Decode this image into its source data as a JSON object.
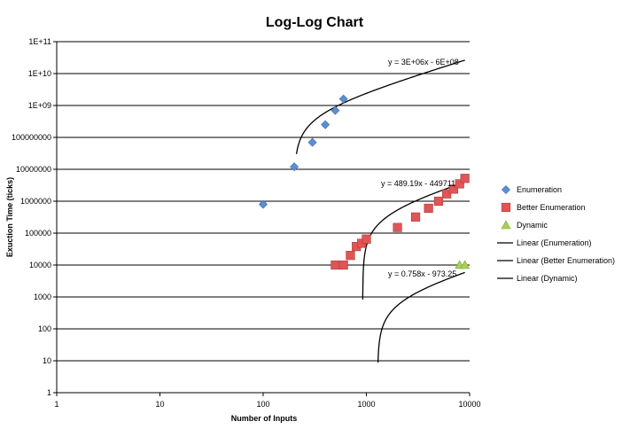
{
  "chart_data": {
    "type": "scatter",
    "title": "Log-Log Chart",
    "xlabel": "Number of Inputs",
    "ylabel": "Exuction Time (ticks)",
    "x_scale": "log",
    "y_scale": "log",
    "xlim": [
      1,
      10000
    ],
    "ylim": [
      1,
      100000000000
    ],
    "x_ticks": [
      "1",
      "10",
      "100",
      "1000",
      "10000"
    ],
    "y_ticks": [
      "1",
      "10",
      "100",
      "1000",
      "10000",
      "100000",
      "1000000",
      "10000000",
      "100000000",
      "1E+09",
      "1E+10",
      "1E+11"
    ],
    "grid": "horizontal",
    "legend_position": "right",
    "series": [
      {
        "name": "Enumeration",
        "marker": "diamond",
        "color": "#5b8fd4",
        "points": [
          [
            100,
            800000
          ],
          [
            200,
            12000000
          ],
          [
            300,
            70000000
          ],
          [
            400,
            250000000
          ],
          [
            500,
            700000000
          ],
          [
            600,
            1600000000
          ]
        ]
      },
      {
        "name": "Better Enumeration",
        "marker": "square",
        "color": "#e05555",
        "points": [
          [
            500,
            10000
          ],
          [
            600,
            10000
          ],
          [
            700,
            20000
          ],
          [
            800,
            38000
          ],
          [
            900,
            48000
          ],
          [
            1000,
            65000
          ],
          [
            2000,
            150000
          ],
          [
            3000,
            320000
          ],
          [
            4000,
            600000
          ],
          [
            5000,
            1000000
          ],
          [
            6000,
            1700000
          ],
          [
            7000,
            2400000
          ],
          [
            8000,
            3500000
          ],
          [
            9000,
            5200000
          ]
        ]
      },
      {
        "name": "Dynamic",
        "marker": "triangle",
        "color": "#a9cf54",
        "points": [
          [
            8000,
            10000
          ],
          [
            9000,
            10000
          ]
        ]
      }
    ],
    "trendlines": [
      {
        "name": "Linear (Enumeration)",
        "slope": 3000000,
        "intercept": -600000000,
        "x_range": [
          210,
          9000
        ],
        "equation": "y = 3E+06x - 6E+08"
      },
      {
        "name": "Linear (Better Enumeration)",
        "slope": 489.19,
        "intercept": -449711,
        "x_range": [
          921,
          9000
        ],
        "equation": "y = 489.19x - 449711"
      },
      {
        "name": "Linear (Dynamic)",
        "slope": 0.758,
        "intercept": -973.25,
        "x_range": [
          1285,
          9000
        ],
        "equation": "y = 0.758x - 973.25"
      }
    ]
  }
}
